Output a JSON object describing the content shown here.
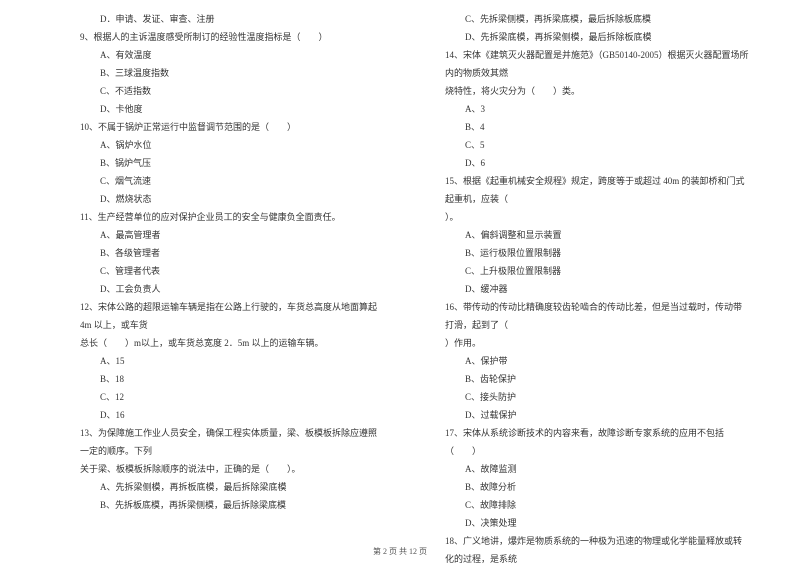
{
  "left": {
    "q8_optD": "D．申请、发证、审查、注册",
    "q9": "9、根据人的主诉温度感受所制订的经验性温度指标是（　　）",
    "q9_optA": "A、有效温度",
    "q9_optB": "B、三球温度指数",
    "q9_optC": "C、不适指数",
    "q9_optD": "D、卡他度",
    "q10": "10、不属于锅炉正常运行中监督调节范围的是（　　）",
    "q10_optA": "A、锅炉水位",
    "q10_optB": "B、锅炉气压",
    "q10_optC": "C、烟气流速",
    "q10_optD": "D、燃烧状态",
    "q11": "11、生产经营单位的应对保护企业员工的安全与健康负全面责任。",
    "q11_optA": "A、最高管理者",
    "q11_optB": "B、各级管理者",
    "q11_optC": "C、管理者代表",
    "q11_optD": "D、工会负责人",
    "q12": "12、宋体公路的超限运输车辆是指在公路上行驶的，车货总高度从地面算起 4m 以上，或车货",
    "q12_cont": "总长（　　）m以上，或车货总宽度 2．5m 以上的运输车辆。",
    "q12_optA": "A、15",
    "q12_optB": "B、18",
    "q12_optC": "C、12",
    "q12_optD": "D、16",
    "q13": "13、为保障施工作业人员安全，确保工程实体质量，梁、板模板拆除应遵照一定的顺序。下列",
    "q13_cont": "关于梁、板模板拆除顺序的说法中，正确的是（　　）。",
    "q13_optA": "A、先拆梁侧模，再拆板底模，最后拆除梁底模",
    "q13_optB": "B、先拆板底模，再拆梁侧模，最后拆除梁底模"
  },
  "right": {
    "q13_optC": "C、先拆梁侧模，再拆梁底模，最后拆除板底模",
    "q13_optD": "D、先拆梁底模，再拆梁侧模，最后拆除板底模",
    "q14": "14、宋体《建筑灭火器配置是并施范》（GB50140-2005）根据灭火器配置场所内的物质效其燃",
    "q14_cont": "烧特性，将火灾分为（　　）类。",
    "q14_optA": "A、3",
    "q14_optB": "B、4",
    "q14_optC": "C、5",
    "q14_optD": "D、6",
    "q15": "15、根据《起重机械安全规程》规定，跨度等于或超过 40m 的装卸桥和门式起重机，应装（",
    "q15_cont": "）。",
    "q15_optA": "A、偏斜调整和显示装置",
    "q15_optB": "B、运行极限位置限制器",
    "q15_optC": "C、上升极限位置限制器",
    "q15_optD": "D、缓冲器",
    "q16": "16、带传动的传动比精确度较齿轮啮合的传动比差，但是当过载时，传动带打滑，起到了（",
    "q16_cont": "）作用。",
    "q16_optA": "A、保护带",
    "q16_optB": "B、齿轮保护",
    "q16_optC": "C、接头防护",
    "q16_optD": "D、过载保护",
    "q17": "17、宋体从系统诊断技术的内容来看，故障诊断专家系统的应用不包括（　　）",
    "q17_optA": "A、故障监测",
    "q17_optB": "B、故障分析",
    "q17_optC": "C、故障排除",
    "q17_optD": "D、决策处理",
    "q18": "18、广义地讲，爆炸是物质系统的一种极为迅速的物理或化学能量释放或转化的过程，是系统"
  },
  "footer": "第 2 页 共 12 页"
}
